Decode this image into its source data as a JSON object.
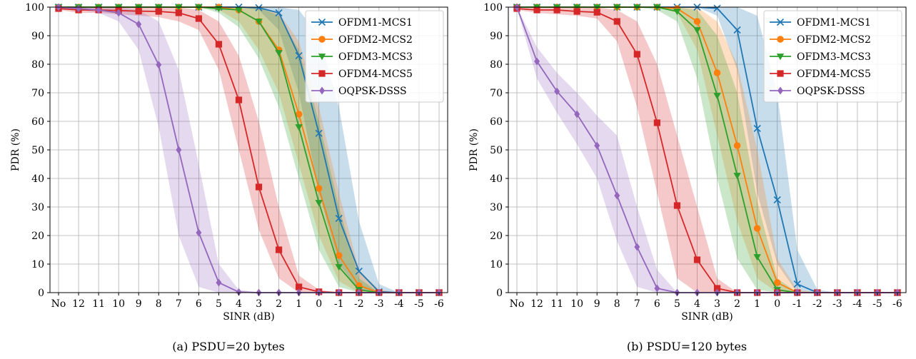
{
  "colors": {
    "OFDM1-MCS1": "#1f77b4",
    "OFDM2-MCS2": "#ff7f0e",
    "OFDM3-MCS3": "#2ca02c",
    "OFDM4-MCS5": "#d62728",
    "OQPSK-DSSS": "#9467bd"
  },
  "chart_data": [
    {
      "type": "line",
      "caption": "(a) PSDU=20 bytes",
      "xlabel": "SINR (dB)",
      "ylabel": "PDR (%)",
      "ylim": [
        0,
        100
      ],
      "yticks": [
        0,
        10,
        20,
        30,
        40,
        50,
        60,
        70,
        80,
        90,
        100
      ],
      "grid": true,
      "legend": "top-right",
      "categories": [
        "No",
        "12",
        "11",
        "10",
        "9",
        "8",
        "7",
        "6",
        "5",
        "4",
        "3",
        "2",
        "1",
        "0",
        "-1",
        "-2",
        "-3",
        "-4",
        "-5",
        "-6"
      ],
      "series": [
        {
          "name": "OFDM1-MCS1",
          "marker": "x",
          "color": "#1f77b4",
          "values": [
            100,
            100,
            100,
            100,
            100,
            100,
            100,
            100,
            100,
            100,
            99.8,
            98,
            83,
            55.8,
            26,
            7.5,
            0.3,
            0,
            0,
            0
          ],
          "band_low": [
            100,
            100,
            100,
            100,
            100,
            100,
            100,
            100,
            100,
            100,
            99,
            92,
            70,
            35,
            10,
            1,
            0,
            0,
            0,
            0
          ],
          "band_high": [
            100,
            100,
            100,
            100,
            100,
            100,
            100,
            100,
            100,
            100,
            100,
            100,
            99,
            90,
            65,
            25,
            3,
            0,
            0,
            0
          ]
        },
        {
          "name": "OFDM2-MCS2",
          "marker": "o",
          "color": "#ff7f0e",
          "values": [
            100,
            100,
            100,
            100,
            100,
            100,
            100,
            100,
            100,
            99,
            95,
            85,
            62.5,
            36.5,
            13,
            2.5,
            0,
            0,
            0,
            0
          ],
          "band_low": [
            100,
            100,
            100,
            100,
            100,
            100,
            100,
            100,
            99,
            95,
            85,
            70,
            45,
            20,
            4,
            0,
            0,
            0,
            0,
            0
          ],
          "band_high": [
            100,
            100,
            100,
            100,
            100,
            100,
            100,
            100,
            100,
            100,
            100,
            98,
            88,
            65,
            35,
            8,
            1,
            0,
            0,
            0
          ]
        },
        {
          "name": "OFDM3-MCS3",
          "marker": "v",
          "color": "#2ca02c",
          "values": [
            100,
            100,
            100,
            100,
            100,
            100,
            100,
            100,
            99.5,
            99,
            95,
            84,
            58,
            31.5,
            9,
            1,
            0,
            0,
            0,
            0
          ],
          "band_low": [
            100,
            100,
            100,
            100,
            100,
            100,
            100,
            100,
            98,
            93,
            82,
            65,
            40,
            15,
            2,
            0,
            0,
            0,
            0,
            0
          ],
          "band_high": [
            100,
            100,
            100,
            100,
            100,
            100,
            100,
            100,
            100,
            100,
            100,
            97,
            85,
            60,
            30,
            5,
            0,
            0,
            0,
            0
          ]
        },
        {
          "name": "OFDM4-MCS5",
          "marker": "s",
          "color": "#d62728",
          "values": [
            99.5,
            99,
            99,
            98.8,
            98.6,
            98.5,
            98,
            96,
            87,
            67.5,
            37,
            15,
            2,
            0.3,
            0,
            0,
            0,
            0,
            0,
            0
          ],
          "band_low": [
            99,
            98,
            98,
            97.5,
            97,
            96.5,
            95,
            92,
            78,
            50,
            22,
            5,
            0,
            0,
            0,
            0,
            0,
            0,
            0,
            0
          ],
          "band_high": [
            100,
            100,
            100,
            100,
            100,
            100,
            100,
            99,
            95,
            83,
            60,
            30,
            6,
            1,
            0,
            0,
            0,
            0,
            0,
            0
          ]
        },
        {
          "name": "OQPSK-DSSS",
          "marker": "D",
          "color": "#9467bd",
          "values": [
            100,
            99.5,
            99,
            98,
            94,
            79.8,
            50,
            21,
            3.5,
            0.2,
            0,
            0,
            0,
            0,
            0,
            0,
            0,
            0,
            0,
            0
          ],
          "band_low": [
            99.5,
            99,
            98,
            95,
            85,
            58,
            20,
            2,
            0,
            0,
            0,
            0,
            0,
            0,
            0,
            0,
            0,
            0,
            0,
            0
          ],
          "band_high": [
            100,
            100,
            100,
            100,
            99,
            95,
            78,
            45,
            10,
            1,
            0,
            0,
            0,
            0,
            0,
            0,
            0,
            0,
            0,
            0
          ]
        }
      ]
    },
    {
      "type": "line",
      "caption": "(b) PSDU=120 bytes",
      "xlabel": "SINR (dB)",
      "ylabel": "PDR (%)",
      "ylim": [
        0,
        100
      ],
      "yticks": [
        0,
        10,
        20,
        30,
        40,
        50,
        60,
        70,
        80,
        90,
        100
      ],
      "grid": true,
      "legend": "top-right",
      "categories": [
        "No",
        "12",
        "11",
        "10",
        "9",
        "8",
        "7",
        "6",
        "5",
        "4",
        "3",
        "2",
        "1",
        "0",
        "-1",
        "-2",
        "-3",
        "-4",
        "-5",
        "-6"
      ],
      "series": [
        {
          "name": "OFDM1-MCS1",
          "marker": "x",
          "color": "#1f77b4",
          "values": [
            100,
            100,
            100,
            100,
            100,
            100,
            100,
            100,
            100,
            100,
            99.6,
            92,
            57.5,
            32.5,
            3,
            0,
            0,
            0,
            0,
            0
          ],
          "band_low": [
            100,
            100,
            100,
            100,
            100,
            100,
            100,
            100,
            100,
            100,
            97,
            78,
            35,
            10,
            0,
            0,
            0,
            0,
            0,
            0
          ],
          "band_high": [
            100,
            100,
            100,
            100,
            100,
            100,
            100,
            100,
            100,
            100,
            100,
            100,
            97,
            70,
            15,
            1,
            0,
            0,
            0,
            0
          ]
        },
        {
          "name": "OFDM2-MCS2",
          "marker": "o",
          "color": "#ff7f0e",
          "values": [
            100,
            100,
            100,
            100,
            100,
            100,
            100,
            100,
            99.5,
            95,
            77,
            51.5,
            22.5,
            3.5,
            0,
            0,
            0,
            0,
            0,
            0
          ],
          "band_low": [
            100,
            100,
            100,
            100,
            100,
            100,
            100,
            100,
            98,
            85,
            55,
            25,
            5,
            0,
            0,
            0,
            0,
            0,
            0,
            0
          ],
          "band_high": [
            100,
            100,
            100,
            100,
            100,
            100,
            100,
            100,
            100,
            100,
            95,
            80,
            50,
            12,
            1,
            0,
            0,
            0,
            0,
            0
          ]
        },
        {
          "name": "OFDM3-MCS3",
          "marker": "v",
          "color": "#2ca02c",
          "values": [
            100,
            100,
            100,
            100,
            100,
            100,
            100,
            100,
            98.5,
            92,
            69,
            41,
            12.5,
            1,
            0,
            0,
            0,
            0,
            0,
            0
          ],
          "band_low": [
            100,
            100,
            100,
            100,
            100,
            100,
            100,
            99,
            95,
            75,
            40,
            12,
            1,
            0,
            0,
            0,
            0,
            0,
            0,
            0
          ],
          "band_high": [
            100,
            100,
            100,
            100,
            100,
            100,
            100,
            100,
            100,
            99,
            90,
            70,
            32,
            5,
            0,
            0,
            0,
            0,
            0,
            0
          ]
        },
        {
          "name": "OFDM4-MCS5",
          "marker": "s",
          "color": "#d62728",
          "values": [
            99.5,
            99,
            99,
            98.5,
            98.2,
            95,
            83.5,
            59.5,
            30.5,
            11.5,
            1.5,
            0,
            0,
            0,
            0,
            0,
            0,
            0,
            0,
            0
          ],
          "band_low": [
            99,
            98,
            97.5,
            97,
            96,
            88,
            65,
            35,
            5,
            0,
            0,
            0,
            0,
            0,
            0,
            0,
            0,
            0,
            0,
            0
          ],
          "band_high": [
            100,
            100,
            100,
            100,
            100,
            99,
            95,
            80,
            55,
            30,
            5,
            0,
            0,
            0,
            0,
            0,
            0,
            0,
            0,
            0
          ]
        },
        {
          "name": "OQPSK-DSSS",
          "marker": "D",
          "color": "#9467bd",
          "values": [
            100,
            81,
            70.5,
            62.5,
            51.5,
            34,
            16,
            1.5,
            0,
            0,
            0,
            0,
            0,
            0,
            0,
            0,
            0,
            0,
            0,
            0
          ],
          "band_low": [
            99.5,
            75,
            63,
            52,
            40,
            18,
            2,
            0,
            0,
            0,
            0,
            0,
            0,
            0,
            0,
            0,
            0,
            0,
            0,
            0
          ],
          "band_high": [
            100,
            86,
            77,
            70,
            62,
            55,
            30,
            8,
            0,
            0,
            0,
            0,
            0,
            0,
            0,
            0,
            0,
            0,
            0,
            0
          ]
        }
      ]
    }
  ]
}
